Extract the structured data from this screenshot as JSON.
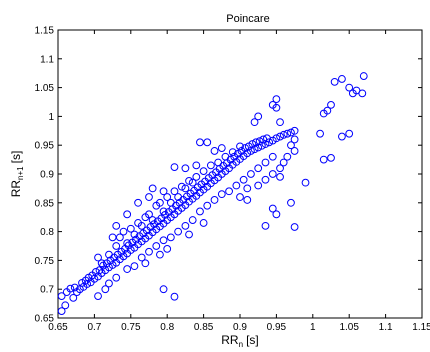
{
  "chart_data": {
    "type": "scatter",
    "title": "Poincare",
    "xlabel": "RR",
    "xlabel_sub": "n",
    "xlabel_unit": "[s]",
    "ylabel": "RR",
    "ylabel_sub": "n+1",
    "ylabel_unit": "[s]",
    "xlim": [
      0.65,
      1.15
    ],
    "ylim": [
      0.65,
      1.15
    ],
    "xticks": [
      "0.65",
      "0.7",
      "0.75",
      "0.8",
      "0.85",
      "0.9",
      "0.95",
      "1",
      "1.05",
      "1.1",
      "1.15"
    ],
    "yticks": [
      "0.65",
      "0.7",
      "0.75",
      "0.8",
      "0.85",
      "0.9",
      "0.95",
      "1",
      "1.05",
      "1.1",
      "1.15"
    ],
    "grid": false,
    "marker": "circle",
    "marker_color": "#0000ff",
    "series": [
      {
        "points": [
          [
            0.655,
            0.688
          ],
          [
            0.655,
            0.662
          ],
          [
            0.66,
            0.672
          ],
          [
            0.662,
            0.695
          ],
          [
            0.667,
            0.701
          ],
          [
            0.671,
            0.685
          ],
          [
            0.673,
            0.703
          ],
          [
            0.676,
            0.695
          ],
          [
            0.68,
            0.7
          ],
          [
            0.683,
            0.711
          ],
          [
            0.685,
            0.704
          ],
          [
            0.688,
            0.715
          ],
          [
            0.69,
            0.709
          ],
          [
            0.692,
            0.72
          ],
          [
            0.695,
            0.712
          ],
          [
            0.697,
            0.724
          ],
          [
            0.7,
            0.718
          ],
          [
            0.702,
            0.73
          ],
          [
            0.705,
            0.722
          ],
          [
            0.707,
            0.733
          ],
          [
            0.71,
            0.728
          ],
          [
            0.712,
            0.741
          ],
          [
            0.715,
            0.733
          ],
          [
            0.717,
            0.745
          ],
          [
            0.72,
            0.738
          ],
          [
            0.722,
            0.75
          ],
          [
            0.725,
            0.742
          ],
          [
            0.727,
            0.755
          ],
          [
            0.73,
            0.746
          ],
          [
            0.732,
            0.76
          ],
          [
            0.735,
            0.752
          ],
          [
            0.737,
            0.765
          ],
          [
            0.74,
            0.757
          ],
          [
            0.742,
            0.77
          ],
          [
            0.745,
            0.762
          ],
          [
            0.747,
            0.776
          ],
          [
            0.75,
            0.768
          ],
          [
            0.752,
            0.781
          ],
          [
            0.755,
            0.772
          ],
          [
            0.757,
            0.786
          ],
          [
            0.76,
            0.778
          ],
          [
            0.762,
            0.792
          ],
          [
            0.765,
            0.783
          ],
          [
            0.767,
            0.797
          ],
          [
            0.77,
            0.788
          ],
          [
            0.772,
            0.802
          ],
          [
            0.775,
            0.793
          ],
          [
            0.777,
            0.808
          ],
          [
            0.78,
            0.799
          ],
          [
            0.782,
            0.813
          ],
          [
            0.785,
            0.804
          ],
          [
            0.787,
            0.818
          ],
          [
            0.79,
            0.809
          ],
          [
            0.792,
            0.823
          ],
          [
            0.795,
            0.814
          ],
          [
            0.797,
            0.829
          ],
          [
            0.8,
            0.82
          ],
          [
            0.802,
            0.834
          ],
          [
            0.805,
            0.825
          ],
          [
            0.807,
            0.839
          ],
          [
            0.81,
            0.83
          ],
          [
            0.812,
            0.845
          ],
          [
            0.815,
            0.836
          ],
          [
            0.817,
            0.85
          ],
          [
            0.82,
            0.841
          ],
          [
            0.822,
            0.855
          ],
          [
            0.825,
            0.846
          ],
          [
            0.827,
            0.861
          ],
          [
            0.83,
            0.852
          ],
          [
            0.832,
            0.866
          ],
          [
            0.835,
            0.857
          ],
          [
            0.837,
            0.871
          ],
          [
            0.84,
            0.862
          ],
          [
            0.842,
            0.877
          ],
          [
            0.845,
            0.868
          ],
          [
            0.847,
            0.882
          ],
          [
            0.85,
            0.873
          ],
          [
            0.852,
            0.887
          ],
          [
            0.855,
            0.878
          ],
          [
            0.857,
            0.893
          ],
          [
            0.86,
            0.884
          ],
          [
            0.862,
            0.898
          ],
          [
            0.865,
            0.889
          ],
          [
            0.867,
            0.903
          ],
          [
            0.87,
            0.894
          ],
          [
            0.872,
            0.909
          ],
          [
            0.875,
            0.9
          ],
          [
            0.877,
            0.914
          ],
          [
            0.88,
            0.905
          ],
          [
            0.882,
            0.919
          ],
          [
            0.885,
            0.91
          ],
          [
            0.887,
            0.925
          ],
          [
            0.89,
            0.916
          ],
          [
            0.892,
            0.93
          ],
          [
            0.895,
            0.921
          ],
          [
            0.897,
            0.935
          ],
          [
            0.9,
            0.926
          ],
          [
            0.902,
            0.94
          ],
          [
            0.905,
            0.931
          ],
          [
            0.907,
            0.945
          ],
          [
            0.91,
            0.936
          ],
          [
            0.912,
            0.948
          ],
          [
            0.915,
            0.94
          ],
          [
            0.917,
            0.952
          ],
          [
            0.92,
            0.943
          ],
          [
            0.922,
            0.955
          ],
          [
            0.925,
            0.946
          ],
          [
            0.927,
            0.957
          ],
          [
            0.93,
            0.949
          ],
          [
            0.932,
            0.96
          ],
          [
            0.935,
            0.952
          ],
          [
            0.937,
            0.962
          ],
          [
            0.94,
            0.955
          ],
          [
            0.945,
            0.958
          ],
          [
            0.95,
            0.962
          ],
          [
            0.955,
            0.965
          ],
          [
            0.96,
            0.968
          ],
          [
            0.965,
            0.97
          ],
          [
            0.97,
            0.972
          ],
          [
            0.975,
            0.975
          ],
          [
            0.735,
            0.79
          ],
          [
            0.74,
            0.8
          ],
          [
            0.75,
            0.805
          ],
          [
            0.76,
            0.815
          ],
          [
            0.77,
            0.825
          ],
          [
            0.775,
            0.83
          ],
          [
            0.785,
            0.845
          ],
          [
            0.79,
            0.85
          ],
          [
            0.8,
            0.86
          ],
          [
            0.81,
            0.87
          ],
          [
            0.82,
            0.878
          ],
          [
            0.83,
            0.888
          ],
          [
            0.84,
            0.895
          ],
          [
            0.85,
            0.905
          ],
          [
            0.86,
            0.915
          ],
          [
            0.87,
            0.92
          ],
          [
            0.88,
            0.93
          ],
          [
            0.89,
            0.938
          ],
          [
            0.9,
            0.948
          ],
          [
            0.72,
            0.71
          ],
          [
            0.73,
            0.72
          ],
          [
            0.745,
            0.735
          ],
          [
            0.755,
            0.74
          ],
          [
            0.765,
            0.755
          ],
          [
            0.775,
            0.765
          ],
          [
            0.785,
            0.775
          ],
          [
            0.795,
            0.785
          ],
          [
            0.805,
            0.79
          ],
          [
            0.815,
            0.8
          ],
          [
            0.825,
            0.81
          ],
          [
            0.835,
            0.82
          ],
          [
            0.845,
            0.835
          ],
          [
            0.855,
            0.845
          ],
          [
            0.865,
            0.855
          ],
          [
            0.875,
            0.865
          ],
          [
            0.885,
            0.87
          ],
          [
            0.895,
            0.88
          ],
          [
            0.905,
            0.89
          ],
          [
            0.915,
            0.9
          ],
          [
            0.925,
            0.91
          ],
          [
            0.935,
            0.92
          ],
          [
            0.945,
            0.93
          ],
          [
            0.705,
            0.688
          ],
          [
            0.715,
            0.7
          ],
          [
            0.71,
            0.745
          ],
          [
            0.705,
            0.755
          ],
          [
            0.72,
            0.76
          ],
          [
            0.73,
            0.775
          ],
          [
            0.745,
            0.78
          ],
          [
            0.755,
            0.795
          ],
          [
            0.765,
            0.81
          ],
          [
            0.78,
            0.82
          ],
          [
            0.795,
            0.835
          ],
          [
            0.805,
            0.85
          ],
          [
            0.815,
            0.86
          ],
          [
            0.825,
            0.875
          ],
          [
            0.835,
            0.885
          ],
          [
            0.81,
            0.912
          ],
          [
            0.825,
            0.91
          ],
          [
            0.84,
            0.915
          ],
          [
            0.845,
            0.955
          ],
          [
            0.855,
            0.955
          ],
          [
            0.865,
            0.94
          ],
          [
            0.875,
            0.945
          ],
          [
            0.78,
            0.875
          ],
          [
            0.775,
            0.86
          ],
          [
            0.795,
            0.87
          ],
          [
            0.76,
            0.85
          ],
          [
            0.745,
            0.83
          ],
          [
            0.73,
            0.81
          ],
          [
            0.725,
            0.79
          ],
          [
            0.9,
            0.86
          ],
          [
            0.91,
            0.875
          ],
          [
            0.925,
            0.88
          ],
          [
            0.935,
            0.89
          ],
          [
            0.945,
            0.9
          ],
          [
            0.955,
            0.91
          ],
          [
            0.96,
            0.92
          ],
          [
            0.955,
            0.895
          ],
          [
            0.965,
            0.93
          ],
          [
            0.975,
            0.94
          ],
          [
            0.97,
            0.95
          ],
          [
            0.95,
            0.83
          ],
          [
            0.935,
            0.81
          ],
          [
            0.945,
            0.84
          ],
          [
            0.97,
            0.85
          ],
          [
            0.975,
            0.808
          ],
          [
            0.99,
            0.885
          ],
          [
            0.91,
            0.855
          ],
          [
            0.795,
            0.7
          ],
          [
            0.81,
            0.687
          ],
          [
            0.77,
            0.745
          ],
          [
            0.79,
            0.76
          ],
          [
            0.8,
            0.77
          ],
          [
            0.83,
            0.795
          ],
          [
            0.85,
            0.815
          ],
          [
            0.945,
            1.02
          ],
          [
            0.95,
            1.015
          ],
          [
            0.95,
            1.03
          ],
          [
            0.925,
            1.0
          ],
          [
            0.955,
            0.99
          ],
          [
            0.92,
            0.99
          ],
          [
            0.975,
            0.96
          ],
          [
            1.01,
            0.97
          ],
          [
            1.015,
            1.005
          ],
          [
            1.02,
            1.01
          ],
          [
            1.025,
            1.02
          ],
          [
            1.03,
            1.06
          ],
          [
            1.04,
            1.065
          ],
          [
            1.05,
            1.05
          ],
          [
            1.055,
            1.04
          ],
          [
            1.06,
            1.045
          ],
          [
            1.07,
            1.07
          ],
          [
            1.068,
            1.04
          ],
          [
            1.015,
            0.925
          ],
          [
            1.025,
            0.928
          ],
          [
            1.04,
            0.965
          ],
          [
            1.05,
            0.97
          ]
        ]
      }
    ]
  }
}
